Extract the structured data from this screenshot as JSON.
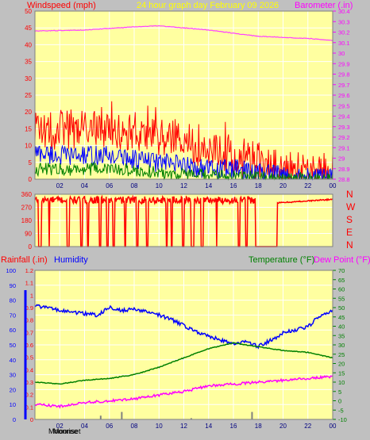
{
  "header": {
    "windspeed_label": "Windspeed (mph)",
    "title": "24 hour graph day   February 09 2026",
    "barometer_label": "Barometer (.in)"
  },
  "direction_labels": [
    "N",
    "W",
    "S",
    "E",
    "N"
  ],
  "bottom_header": {
    "rainfall_label": "Rainfall (.in)",
    "humidity_label": "Humidity",
    "temperature_label": "Temperature (°F)",
    "dewpoint_label": "Dew Point (°F)"
  },
  "footer": {
    "moonrise_label": "Moonrise",
    "moonset_label": "Moonset"
  },
  "colors": {
    "plot_bg": "#ffffa0",
    "grid": "#ffffff",
    "gust": "#ff0000",
    "average": "#0000ff",
    "minimum": "#008000",
    "barometer": "#ff40ff",
    "direction": "#ff0000",
    "humidity": "#0000ff",
    "temperature": "#008000",
    "dewpoint": "#ff00ff",
    "rain": "#0000ff",
    "title": "#ffff00",
    "axis_label": "#ff0000"
  },
  "chart_data": [
    {
      "type": "line",
      "title": "24 hour graph day   February 09 2026",
      "x_ticks": [
        "02",
        "04",
        "06",
        "08",
        "10",
        "12",
        "14",
        "16",
        "18",
        "20",
        "22",
        "00"
      ],
      "y_left_label": "Windspeed (mph)",
      "y_left_ticks": [
        "0",
        "5",
        "10",
        "15",
        "20",
        "25",
        "30",
        "35",
        "40",
        "45",
        "50"
      ],
      "ylim_left": [
        0,
        50
      ],
      "y_right_label": "Barometer (.in)",
      "y_right_ticks": [
        "28.8",
        "28.9",
        "29",
        "29.1",
        "29.2",
        "29.3",
        "29.4",
        "29.5",
        "29.6",
        "29.7",
        "29.8",
        "29.9",
        "30",
        "30.1",
        "30.2",
        "30.3",
        "30.4"
      ],
      "ylim_right": [
        28.8,
        30.4
      ],
      "series": [
        {
          "name": "Gust",
          "anchors": [
            [
              0,
              14
            ],
            [
              2,
              15
            ],
            [
              4,
              15
            ],
            [
              6,
              15
            ],
            [
              8,
              14
            ],
            [
              10,
              13
            ],
            [
              12,
              11
            ],
            [
              14,
              9
            ],
            [
              16,
              7
            ],
            [
              18,
              5
            ],
            [
              20,
              3
            ],
            [
              22,
              2
            ],
            [
              24,
              2
            ]
          ],
          "noise": 6
        },
        {
          "name": "Average",
          "anchors": [
            [
              0,
              8
            ],
            [
              2,
              7
            ],
            [
              4,
              7
            ],
            [
              6,
              7
            ],
            [
              8,
              6
            ],
            [
              10,
              5
            ],
            [
              12,
              4
            ],
            [
              14,
              3
            ],
            [
              16,
              3
            ],
            [
              18,
              2
            ],
            [
              20,
              1
            ],
            [
              22,
              0.5
            ],
            [
              24,
              0.5
            ]
          ],
          "noise": 3
        },
        {
          "name": "Minimum",
          "anchors": [
            [
              0,
              3
            ],
            [
              2,
              3
            ],
            [
              4,
              3
            ],
            [
              6,
              3
            ],
            [
              8,
              2.5
            ],
            [
              10,
              2
            ],
            [
              12,
              1.5
            ],
            [
              14,
              1
            ],
            [
              16,
              1
            ],
            [
              18,
              0.5
            ],
            [
              20,
              0
            ],
            [
              22,
              0
            ],
            [
              24,
              0
            ]
          ],
          "noise": 2
        },
        {
          "name": "Barometer",
          "anchors": [
            [
              0,
              30.21
            ],
            [
              4,
              30.22
            ],
            [
              8,
              30.25
            ],
            [
              10,
              30.26
            ],
            [
              12,
              30.24
            ],
            [
              14,
              30.22
            ],
            [
              16,
              30.19
            ],
            [
              18,
              30.16
            ],
            [
              20,
              30.15
            ],
            [
              22,
              30.14
            ],
            [
              24,
              30.12
            ]
          ],
          "noise": 0.003
        }
      ]
    },
    {
      "type": "line",
      "title": "",
      "y_ticks": [
        "0",
        "90",
        "180",
        "270",
        "360"
      ],
      "ylim": [
        0,
        360
      ],
      "direction_labels": [
        "N",
        "W",
        "S",
        "E",
        "N"
      ],
      "series": [
        {
          "name": "Wind direction",
          "baseline": 320,
          "noise": 25,
          "dropouts": [
            [
              0.3,
              0.5
            ],
            [
              1.1,
              1.2
            ],
            [
              2.6,
              2.75
            ],
            [
              3.7,
              3.8
            ],
            [
              4.2,
              4.3
            ],
            [
              5.2,
              5.3
            ],
            [
              5.8,
              5.9
            ],
            [
              6.3,
              6.4
            ],
            [
              7.2,
              7.3
            ],
            [
              8.2,
              8.3
            ],
            [
              9.0,
              9.1
            ],
            [
              10.6,
              10.7
            ],
            [
              11.0,
              11.1
            ],
            [
              11.9,
              12.0
            ],
            [
              12.6,
              12.8
            ],
            [
              13.4,
              13.55
            ],
            [
              14.6,
              14.7
            ],
            [
              16.4,
              16.5
            ],
            [
              17.0,
              17.1
            ],
            [
              17.8,
              19.5
            ]
          ],
          "end_value": 325
        }
      ]
    },
    {
      "type": "line",
      "title": "",
      "x_ticks": [
        "02",
        "04",
        "06",
        "08",
        "10",
        "12",
        "14",
        "16",
        "18",
        "20",
        "22",
        "00"
      ],
      "y_left_label": "Humidity",
      "y_left_ticks": [
        "0",
        "10",
        "20",
        "30",
        "40",
        "50",
        "60",
        "70",
        "80",
        "90",
        "100"
      ],
      "ylim_left": [
        0,
        100
      ],
      "y_rain_label": "Rainfall (.in)",
      "y_rain_ticks": [
        "0",
        "0.1",
        "0.2",
        "0.3",
        "0.4",
        "0.5",
        "0.6",
        "0.7",
        "0.8",
        "0.9",
        "1",
        "1.1",
        "1.2"
      ],
      "ylim_rain": [
        0,
        1.2
      ],
      "y_right_label": "Temperature (°F)",
      "y_right_ticks": [
        "-10",
        "-5",
        "0",
        "5",
        "10",
        "15",
        "20",
        "25",
        "30",
        "35",
        "40",
        "45",
        "50",
        "55",
        "60",
        "65",
        "70"
      ],
      "ylim_right": [
        -10,
        70
      ],
      "series": [
        {
          "name": "Humidity",
          "axis": "left",
          "anchors": [
            [
              0,
              76
            ],
            [
              1,
              75
            ],
            [
              2,
              73
            ],
            [
              3,
              72
            ],
            [
              4,
              71
            ],
            [
              5,
              70
            ],
            [
              6,
              75
            ],
            [
              7,
              73
            ],
            [
              8,
              74
            ],
            [
              9,
              72
            ],
            [
              10,
              70
            ],
            [
              11,
              67
            ],
            [
              12,
              63
            ],
            [
              13,
              59
            ],
            [
              14,
              56
            ],
            [
              15,
              53
            ],
            [
              16,
              51
            ],
            [
              17,
              52
            ],
            [
              18,
              49
            ],
            [
              19,
              53
            ],
            [
              20,
              58
            ],
            [
              21,
              60
            ],
            [
              22,
              62
            ],
            [
              23,
              70
            ],
            [
              24,
              73
            ]
          ],
          "noise": 1.2
        },
        {
          "name": "Temperature",
          "axis": "right",
          "anchors": [
            [
              0,
              10
            ],
            [
              2,
              9
            ],
            [
              4,
              11
            ],
            [
              6,
              12
            ],
            [
              8,
              14
            ],
            [
              10,
              18
            ],
            [
              12,
              23
            ],
            [
              14,
              28
            ],
            [
              16,
              31
            ],
            [
              17,
              30
            ],
            [
              18,
              29
            ],
            [
              20,
              27
            ],
            [
              22,
              26
            ],
            [
              24,
              23
            ]
          ],
          "noise": 0.2
        },
        {
          "name": "Dew Point",
          "axis": "right",
          "anchors": [
            [
              0,
              -2
            ],
            [
              2,
              -3
            ],
            [
              4,
              -1
            ],
            [
              6,
              0
            ],
            [
              8,
              1
            ],
            [
              10,
              3
            ],
            [
              12,
              5
            ],
            [
              14,
              8
            ],
            [
              16,
              9
            ],
            [
              18,
              10
            ],
            [
              20,
              11
            ],
            [
              22,
              12
            ],
            [
              24,
              13
            ]
          ],
          "noise": 0.7
        },
        {
          "name": "Rainfall",
          "axis": "rain",
          "bars": [
            [
              5.3,
              0.03
            ],
            [
              7.0,
              0.06
            ],
            [
              12.6,
              0.01
            ],
            [
              17.5,
              0.06
            ]
          ]
        }
      ]
    }
  ]
}
